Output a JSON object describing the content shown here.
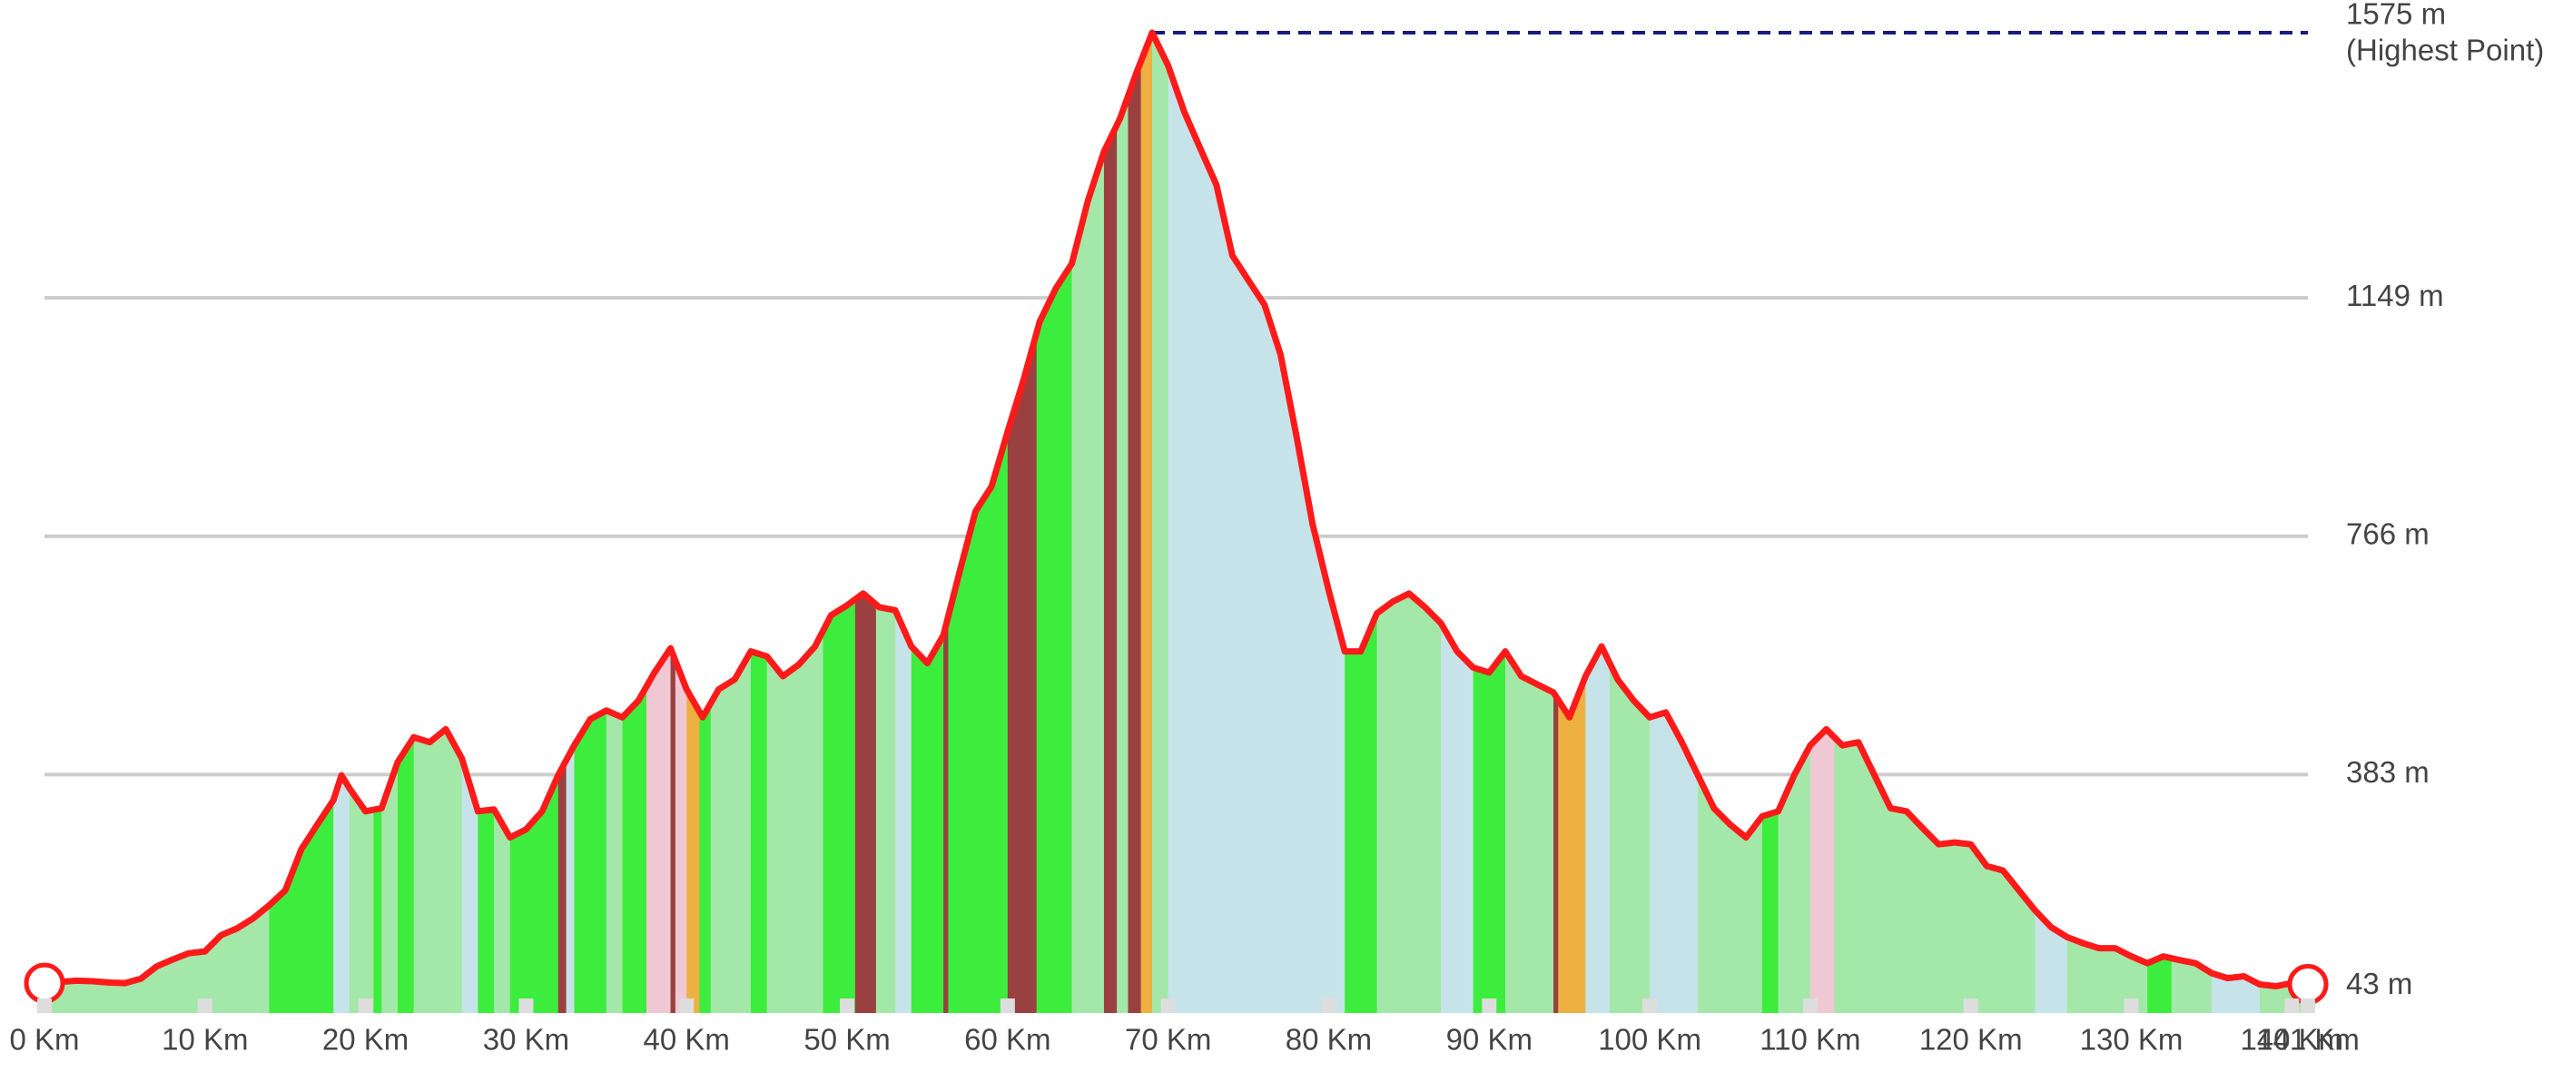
{
  "chart_data": {
    "type": "area",
    "annotation": "(Highest Point)",
    "line_color": "#ff1a1a",
    "peak_line_color": "#1a1a80",
    "grid_color": "#cccccc",
    "x": [
      0,
      1,
      2,
      3,
      4,
      5,
      6,
      7,
      8,
      9,
      10,
      11,
      12,
      13,
      14,
      15,
      16,
      17,
      18,
      18.5,
      19,
      20,
      21,
      22,
      23,
      24,
      25,
      26,
      27,
      28,
      29,
      30,
      31,
      32,
      33,
      34,
      35,
      36,
      37,
      38,
      39,
      40,
      41,
      42,
      43,
      44,
      45,
      46,
      47,
      48,
      49,
      50,
      51,
      52,
      53,
      54,
      55,
      56,
      57,
      58,
      59,
      60,
      61,
      62,
      63,
      64,
      65,
      66,
      67,
      68,
      69,
      70,
      71,
      72,
      73,
      74,
      75,
      76,
      77,
      78,
      79,
      80,
      81,
      82,
      83,
      84,
      85,
      86,
      87,
      88,
      89,
      90,
      91,
      92,
      93,
      94,
      95,
      96,
      97,
      98,
      99,
      100,
      101,
      102,
      103,
      104,
      105,
      106,
      107,
      108,
      109,
      110,
      111,
      112,
      113,
      114,
      115,
      116,
      117,
      118,
      119,
      120,
      121,
      122,
      123,
      124,
      125,
      126,
      127,
      128,
      129,
      130,
      131,
      132,
      133,
      134,
      135,
      136,
      137,
      138,
      139,
      140,
      141
    ],
    "values": [
      48,
      50,
      52,
      51,
      49,
      48,
      55,
      75,
      86,
      96,
      99,
      125,
      136,
      152,
      173,
      197,
      263,
      303,
      342,
      382,
      361,
      324,
      329,
      403,
      443,
      435,
      456,
      409,
      324,
      327,
      282,
      295,
      324,
      382,
      430,
      472,
      486,
      475,
      502,
      547,
      586,
      520,
      475,
      520,
      536,
      581,
      573,
      541,
      560,
      589,
      639,
      655,
      674,
      652,
      647,
      589,
      562,
      607,
      708,
      806,
      846,
      934,
      1018,
      1111,
      1164,
      1204,
      1305,
      1384,
      1437,
      1509,
      1575,
      1522,
      1448,
      1389,
      1331,
      1217,
      1177,
      1138,
      1058,
      926,
      785,
      679,
      581,
      581,
      642,
      661,
      674,
      652,
      626,
      581,
      555,
      547,
      581,
      541,
      528,
      515,
      475,
      541,
      589,
      536,
      502,
      475,
      483,
      435,
      382,
      329,
      303,
      282,
      316,
      324,
      382,
      430,
      456,
      430,
      435,
      382,
      329,
      324,
      297,
      271,
      274,
      271,
      236,
      229,
      197,
      165,
      138,
      122,
      112,
      104,
      104,
      91,
      80,
      91,
      85,
      80,
      64,
      56,
      59,
      46,
      43,
      48,
      46
    ],
    "segments": [
      {
        "start": 0,
        "end": 14,
        "color": "#a3e8a8"
      },
      {
        "start": 14,
        "end": 18,
        "color": "#3ded3d"
      },
      {
        "start": 18,
        "end": 19,
        "color": "#c6e3ea"
      },
      {
        "start": 19,
        "end": 20.5,
        "color": "#a3e8a8"
      },
      {
        "start": 20.5,
        "end": 21,
        "color": "#3ded3d"
      },
      {
        "start": 21,
        "end": 22,
        "color": "#a3e8a8"
      },
      {
        "start": 22,
        "end": 23,
        "color": "#3ded3d"
      },
      {
        "start": 23,
        "end": 26,
        "color": "#a3e8a8"
      },
      {
        "start": 26,
        "end": 27,
        "color": "#c6e3ea"
      },
      {
        "start": 27,
        "end": 28,
        "color": "#3ded3d"
      },
      {
        "start": 28,
        "end": 29,
        "color": "#a3e8a8"
      },
      {
        "start": 29,
        "end": 32,
        "color": "#3ded3d"
      },
      {
        "start": 32,
        "end": 32.5,
        "color": "#9a4040"
      },
      {
        "start": 32.5,
        "end": 33,
        "color": "#c6e3ea"
      },
      {
        "start": 33,
        "end": 35,
        "color": "#3ded3d"
      },
      {
        "start": 35,
        "end": 36,
        "color": "#a3e8a8"
      },
      {
        "start": 36,
        "end": 37.5,
        "color": "#3ded3d"
      },
      {
        "start": 37.5,
        "end": 39,
        "color": "#f0c8d4"
      },
      {
        "start": 39,
        "end": 39.3,
        "color": "#9a4040"
      },
      {
        "start": 39.3,
        "end": 40,
        "color": "#f0c8d4"
      },
      {
        "start": 40,
        "end": 40.8,
        "color": "#eeb040"
      },
      {
        "start": 40.8,
        "end": 41.5,
        "color": "#3ded3d"
      },
      {
        "start": 41.5,
        "end": 44,
        "color": "#a3e8a8"
      },
      {
        "start": 44,
        "end": 45,
        "color": "#3ded3d"
      },
      {
        "start": 45,
        "end": 48.5,
        "color": "#a3e8a8"
      },
      {
        "start": 48.5,
        "end": 50.5,
        "color": "#3ded3d"
      },
      {
        "start": 50.5,
        "end": 51.8,
        "color": "#9a4040"
      },
      {
        "start": 51.8,
        "end": 53,
        "color": "#a3e8a8"
      },
      {
        "start": 53,
        "end": 54,
        "color": "#c6e3ea"
      },
      {
        "start": 54,
        "end": 56,
        "color": "#3ded3d"
      },
      {
        "start": 56,
        "end": 56.3,
        "color": "#9a4040"
      },
      {
        "start": 56.3,
        "end": 60,
        "color": "#3ded3d"
      },
      {
        "start": 60,
        "end": 61.8,
        "color": "#9a4040"
      },
      {
        "start": 61.8,
        "end": 64,
        "color": "#3ded3d"
      },
      {
        "start": 64,
        "end": 66,
        "color": "#a3e8a8"
      },
      {
        "start": 66,
        "end": 66.8,
        "color": "#9a4040"
      },
      {
        "start": 66.8,
        "end": 67.5,
        "color": "#a3e8a8"
      },
      {
        "start": 67.5,
        "end": 68.3,
        "color": "#9a4040"
      },
      {
        "start": 68.3,
        "end": 69,
        "color": "#eeb040"
      },
      {
        "start": 69,
        "end": 70,
        "color": "#a3e8a8"
      },
      {
        "start": 70,
        "end": 81,
        "color": "#c6e3ea"
      },
      {
        "start": 81,
        "end": 83,
        "color": "#3ded3d"
      },
      {
        "start": 83,
        "end": 87,
        "color": "#a3e8a8"
      },
      {
        "start": 87,
        "end": 89,
        "color": "#c6e3ea"
      },
      {
        "start": 89,
        "end": 91,
        "color": "#3ded3d"
      },
      {
        "start": 91,
        "end": 94,
        "color": "#a3e8a8"
      },
      {
        "start": 94,
        "end": 94.3,
        "color": "#9a4040"
      },
      {
        "start": 94.3,
        "end": 96,
        "color": "#eeb040"
      },
      {
        "start": 96,
        "end": 97.5,
        "color": "#c6e3ea"
      },
      {
        "start": 97.5,
        "end": 100,
        "color": "#a3e8a8"
      },
      {
        "start": 100,
        "end": 103,
        "color": "#c6e3ea"
      },
      {
        "start": 103,
        "end": 107,
        "color": "#a3e8a8"
      },
      {
        "start": 107,
        "end": 108,
        "color": "#3ded3d"
      },
      {
        "start": 108,
        "end": 110,
        "color": "#a3e8a8"
      },
      {
        "start": 110,
        "end": 111.5,
        "color": "#f0c8d4"
      },
      {
        "start": 111.5,
        "end": 124,
        "color": "#a3e8a8"
      },
      {
        "start": 124,
        "end": 126,
        "color": "#c6e3ea"
      },
      {
        "start": 126,
        "end": 131,
        "color": "#a3e8a8"
      },
      {
        "start": 131,
        "end": 132.5,
        "color": "#3ded3d"
      },
      {
        "start": 132.5,
        "end": 135,
        "color": "#a3e8a8"
      },
      {
        "start": 135,
        "end": 138,
        "color": "#c6e3ea"
      },
      {
        "start": 138,
        "end": 141,
        "color": "#a3e8a8"
      }
    ],
    "xlim": [
      0,
      141
    ],
    "ylim": [
      0,
      1575
    ],
    "xticks": [
      {
        "value": 0,
        "label": "0 Km"
      },
      {
        "value": 10,
        "label": "10 Km"
      },
      {
        "value": 20,
        "label": "20 Km"
      },
      {
        "value": 30,
        "label": "30 Km"
      },
      {
        "value": 40,
        "label": "40 Km"
      },
      {
        "value": 50,
        "label": "50 Km"
      },
      {
        "value": 60,
        "label": "60 Km"
      },
      {
        "value": 70,
        "label": "70 Km"
      },
      {
        "value": 80,
        "label": "80 Km"
      },
      {
        "value": 90,
        "label": "90 Km"
      },
      {
        "value": 100,
        "label": "100 Km"
      },
      {
        "value": 110,
        "label": "110 Km"
      },
      {
        "value": 120,
        "label": "120 Km"
      },
      {
        "value": 130,
        "label": "130 Km"
      },
      {
        "value": 140,
        "label": "140 Km"
      },
      {
        "value": 141,
        "label": "141 Km"
      }
    ],
    "yticks": [
      {
        "value": 43,
        "label": "43 m"
      },
      {
        "value": 383,
        "label": "383 m"
      },
      {
        "value": 766,
        "label": "766 m"
      },
      {
        "value": 1149,
        "label": "1149 m"
      },
      {
        "value": 1575,
        "label": "1575 m"
      }
    ],
    "grid": true
  }
}
